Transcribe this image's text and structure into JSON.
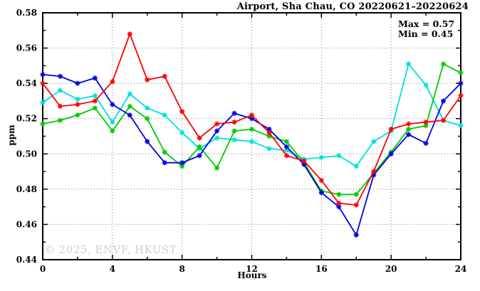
{
  "chart_data": {
    "type": "line",
    "title": "Airport, Sha Chau, CO 20220621–20220624",
    "xlabel": "Hours",
    "ylabel": "ppm",
    "xlim": [
      0,
      24
    ],
    "ylim": [
      0.44,
      0.58
    ],
    "x_major_ticks": [
      0,
      4,
      8,
      12,
      16,
      20,
      24
    ],
    "x_minor_ticks": [
      2,
      6,
      10,
      14,
      18,
      22
    ],
    "y_major_ticks": [
      0.44,
      0.46,
      0.48,
      0.5,
      0.52,
      0.54,
      0.56,
      0.58
    ],
    "y_minor_ticks": [
      0.45,
      0.47,
      0.49,
      0.51,
      0.53,
      0.55,
      0.57
    ],
    "grid": true,
    "grid_x": [
      4,
      8,
      12,
      16,
      20
    ],
    "grid_y": [
      0.46,
      0.48,
      0.5,
      0.52,
      0.54,
      0.56
    ],
    "x": [
      0,
      1,
      2,
      3,
      4,
      5,
      6,
      7,
      8,
      9,
      10,
      11,
      12,
      13,
      14,
      15,
      16,
      17,
      18,
      19,
      20,
      21,
      22,
      23,
      24
    ],
    "series": [
      {
        "name": "cyan-series",
        "color": "#00e0e0",
        "values": [
          0.529,
          0.536,
          0.531,
          0.533,
          0.518,
          0.534,
          0.526,
          0.522,
          0.512,
          0.503,
          0.509,
          0.508,
          0.507,
          0.503,
          0.502,
          0.497,
          0.498,
          0.499,
          0.493,
          0.507,
          0.513,
          0.551,
          0.539,
          0.519,
          0.516
        ]
      },
      {
        "name": "green-series",
        "color": "#00cc00",
        "values": [
          0.517,
          0.519,
          0.522,
          0.526,
          0.513,
          0.527,
          0.52,
          0.501,
          0.493,
          0.504,
          0.492,
          0.513,
          0.514,
          0.51,
          0.507,
          0.495,
          0.479,
          0.477,
          0.477,
          0.489,
          0.501,
          0.514,
          0.516,
          0.551,
          0.546
        ]
      },
      {
        "name": "blue-series",
        "color": "#0000e6",
        "values": [
          0.545,
          0.544,
          0.54,
          0.543,
          0.528,
          0.522,
          0.507,
          0.495,
          0.495,
          0.499,
          0.513,
          0.523,
          0.52,
          0.514,
          0.504,
          0.494,
          0.478,
          0.47,
          0.454,
          0.488,
          0.5,
          0.511,
          0.506,
          0.53,
          0.54
        ]
      },
      {
        "name": "red-series",
        "color": "#ff0000",
        "values": [
          0.54,
          0.527,
          0.528,
          0.53,
          0.541,
          0.568,
          0.542,
          0.544,
          0.524,
          0.509,
          0.517,
          0.518,
          0.522,
          0.512,
          0.499,
          0.496,
          0.485,
          0.472,
          0.471,
          0.49,
          0.514,
          0.517,
          0.518,
          0.519,
          0.533
        ]
      }
    ],
    "annotations": {
      "max_label": "Max = 0.57",
      "min_label": "Min = 0.45"
    },
    "legend_position": "top-right-inside",
    "grid_color": "#808080",
    "axis_color": "#000000"
  },
  "watermark": {
    "text": "© 2025, ENVF, HKUST",
    "color": "#c9d2d9"
  }
}
